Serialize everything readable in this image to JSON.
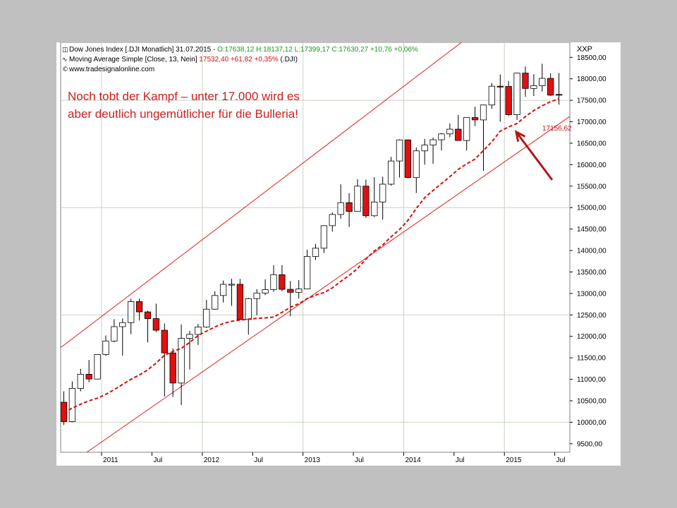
{
  "header": {
    "line1_prefix": "Dow Jones Index [.DJI  Monatlich] 31.07.2015 - ",
    "line1_ohlc": "O:17638,12 H:18137,12 L:17399,17 C:17630,27 +10,76 +0,06%",
    "line2_prefix": "Moving Average Simple [Close, 13, Nein] ",
    "line2_values": "17532,40 +61,82 +0,35%",
    "line2_suffix": " (.DJI)",
    "line3": "www.tradesignalonline.com",
    "symbol": "XXP"
  },
  "annotation": {
    "line1": "Noch tobt der Kampf – unter 17.000 wird es",
    "line2": "aber deutlich ungemütlicher für die Bulleria!"
  },
  "last_value_label": "17156,62",
  "colors": {
    "up_candle": "#ffffff",
    "down_candle": "#e01010",
    "moving_average": "#d01010",
    "channel": "#e02020",
    "arrow": "#b01818",
    "grid": "#c8d4c0"
  },
  "chart_data": {
    "type": "candlestick",
    "title": "Dow Jones Index [.DJI Monatlich]",
    "period": "monthly",
    "ylim": [
      9300,
      18850
    ],
    "y_ticks": [
      9500,
      10000,
      10500,
      11000,
      11500,
      12000,
      12500,
      13000,
      13500,
      14000,
      14500,
      15000,
      15500,
      16000,
      16500,
      17000,
      17500,
      18000,
      18500
    ],
    "y_tick_labels": [
      "9500,00",
      "10000,00",
      "10500,00",
      "11000,00",
      "11500,00",
      "12000,00",
      "12500,00",
      "13000,00",
      "13500,00",
      "14000,00",
      "14500,00",
      "15000,00",
      "15500,00",
      "16000,00",
      "16500,00",
      "17000,00",
      "17500,00",
      "18000,00",
      "18500,00"
    ],
    "x_ticks": [
      {
        "label": "2011",
        "index": 5
      },
      {
        "label": "Jul",
        "index": 11
      },
      {
        "label": "2012",
        "index": 17
      },
      {
        "label": "Jul",
        "index": 23
      },
      {
        "label": "2013",
        "index": 29
      },
      {
        "label": "Jul",
        "index": 35
      },
      {
        "label": "2014",
        "index": 41
      },
      {
        "label": "Jul",
        "index": 47
      },
      {
        "label": "2015",
        "index": 53
      },
      {
        "label": "Jul",
        "index": 59
      }
    ],
    "candles": [
      {
        "date": "2010-08",
        "o": 10466,
        "h": 10720,
        "l": 9936,
        "c": 10015
      },
      {
        "date": "2010-09",
        "o": 10015,
        "h": 10950,
        "l": 10000,
        "c": 10788
      },
      {
        "date": "2010-10",
        "o": 10788,
        "h": 11245,
        "l": 10720,
        "c": 11118
      },
      {
        "date": "2010-11",
        "o": 11118,
        "h": 11450,
        "l": 10930,
        "c": 11006
      },
      {
        "date": "2010-12",
        "o": 11006,
        "h": 11585,
        "l": 11000,
        "c": 11578
      },
      {
        "date": "2011-01",
        "o": 11578,
        "h": 12020,
        "l": 11550,
        "c": 11892
      },
      {
        "date": "2011-02",
        "o": 11892,
        "h": 12400,
        "l": 11860,
        "c": 12226
      },
      {
        "date": "2011-03",
        "o": 12226,
        "h": 12420,
        "l": 11550,
        "c": 12320
      },
      {
        "date": "2011-04",
        "o": 12320,
        "h": 12880,
        "l": 12050,
        "c": 12811
      },
      {
        "date": "2011-05",
        "o": 12811,
        "h": 12880,
        "l": 12370,
        "c": 12570
      },
      {
        "date": "2011-06",
        "o": 12570,
        "h": 12600,
        "l": 11860,
        "c": 12414
      },
      {
        "date": "2011-07",
        "o": 12414,
        "h": 12760,
        "l": 12100,
        "c": 12143
      },
      {
        "date": "2011-08",
        "o": 12143,
        "h": 12300,
        "l": 10600,
        "c": 11614
      },
      {
        "date": "2011-09",
        "o": 11614,
        "h": 11720,
        "l": 10590,
        "c": 10913
      },
      {
        "date": "2011-10",
        "o": 10913,
        "h": 12280,
        "l": 10400,
        "c": 11955
      },
      {
        "date": "2011-11",
        "o": 11955,
        "h": 12130,
        "l": 11230,
        "c": 12046
      },
      {
        "date": "2011-12",
        "o": 12046,
        "h": 12290,
        "l": 11800,
        "c": 12218
      },
      {
        "date": "2012-01",
        "o": 12218,
        "h": 12850,
        "l": 12200,
        "c": 12633
      },
      {
        "date": "2012-02",
        "o": 12633,
        "h": 13050,
        "l": 12620,
        "c": 12952
      },
      {
        "date": "2012-03",
        "o": 12952,
        "h": 13300,
        "l": 12790,
        "c": 13212
      },
      {
        "date": "2012-04",
        "o": 13212,
        "h": 13340,
        "l": 12710,
        "c": 13214
      },
      {
        "date": "2012-05",
        "o": 13214,
        "h": 13340,
        "l": 12380,
        "c": 12393
      },
      {
        "date": "2012-06",
        "o": 12393,
        "h": 12900,
        "l": 12040,
        "c": 12880
      },
      {
        "date": "2012-07",
        "o": 12880,
        "h": 13100,
        "l": 12490,
        "c": 13009
      },
      {
        "date": "2012-08",
        "o": 13009,
        "h": 13330,
        "l": 12960,
        "c": 13091
      },
      {
        "date": "2012-09",
        "o": 13091,
        "h": 13660,
        "l": 13040,
        "c": 13437
      },
      {
        "date": "2012-10",
        "o": 13437,
        "h": 13660,
        "l": 13050,
        "c": 13096
      },
      {
        "date": "2012-11",
        "o": 13096,
        "h": 13290,
        "l": 12470,
        "c": 13026
      },
      {
        "date": "2012-12",
        "o": 13026,
        "h": 13310,
        "l": 12880,
        "c": 13104
      },
      {
        "date": "2013-01",
        "o": 13104,
        "h": 14020,
        "l": 13100,
        "c": 13861
      },
      {
        "date": "2013-02",
        "o": 13861,
        "h": 14150,
        "l": 13780,
        "c": 14054
      },
      {
        "date": "2013-03",
        "o": 14054,
        "h": 14590,
        "l": 13940,
        "c": 14579
      },
      {
        "date": "2013-04",
        "o": 14579,
        "h": 14890,
        "l": 14440,
        "c": 14840
      },
      {
        "date": "2013-05",
        "o": 14840,
        "h": 15540,
        "l": 14740,
        "c": 15116
      },
      {
        "date": "2013-06",
        "o": 15116,
        "h": 15340,
        "l": 14550,
        "c": 14910
      },
      {
        "date": "2013-07",
        "o": 14910,
        "h": 15660,
        "l": 14900,
        "c": 15500
      },
      {
        "date": "2013-08",
        "o": 15500,
        "h": 15650,
        "l": 14760,
        "c": 14810
      },
      {
        "date": "2013-09",
        "o": 14810,
        "h": 15710,
        "l": 14780,
        "c": 15130
      },
      {
        "date": "2013-10",
        "o": 15130,
        "h": 15720,
        "l": 14720,
        "c": 15546
      },
      {
        "date": "2013-11",
        "o": 15546,
        "h": 16180,
        "l": 15510,
        "c": 16086
      },
      {
        "date": "2013-12",
        "o": 16086,
        "h": 16590,
        "l": 15700,
        "c": 16577
      },
      {
        "date": "2014-01",
        "o": 16577,
        "h": 16590,
        "l": 15680,
        "c": 15699
      },
      {
        "date": "2014-02",
        "o": 15699,
        "h": 16400,
        "l": 15340,
        "c": 16322
      },
      {
        "date": "2014-03",
        "o": 16322,
        "h": 16600,
        "l": 16000,
        "c": 16458
      },
      {
        "date": "2014-04",
        "o": 16458,
        "h": 16630,
        "l": 16020,
        "c": 16581
      },
      {
        "date": "2014-05",
        "o": 16581,
        "h": 16740,
        "l": 16330,
        "c": 16717
      },
      {
        "date": "2014-06",
        "o": 16717,
        "h": 16960,
        "l": 16640,
        "c": 16827
      },
      {
        "date": "2014-07",
        "o": 16827,
        "h": 17160,
        "l": 16560,
        "c": 16563
      },
      {
        "date": "2014-08",
        "o": 16563,
        "h": 17100,
        "l": 16330,
        "c": 17098
      },
      {
        "date": "2014-09",
        "o": 17098,
        "h": 17350,
        "l": 16900,
        "c": 17043
      },
      {
        "date": "2014-10",
        "o": 17043,
        "h": 17400,
        "l": 15860,
        "c": 17391
      },
      {
        "date": "2014-11",
        "o": 17391,
        "h": 17900,
        "l": 17300,
        "c": 17828
      },
      {
        "date": "2014-12",
        "o": 17828,
        "h": 18100,
        "l": 17000,
        "c": 17823
      },
      {
        "date": "2015-01",
        "o": 17823,
        "h": 17950,
        "l": 17140,
        "c": 17165
      },
      {
        "date": "2015-02",
        "o": 17165,
        "h": 18140,
        "l": 17040,
        "c": 18133
      },
      {
        "date": "2015-03",
        "o": 18133,
        "h": 18290,
        "l": 17580,
        "c": 17776
      },
      {
        "date": "2015-04",
        "o": 17776,
        "h": 18110,
        "l": 17600,
        "c": 17841
      },
      {
        "date": "2015-05",
        "o": 17841,
        "h": 18350,
        "l": 17700,
        "c": 18011
      },
      {
        "date": "2015-06",
        "o": 18011,
        "h": 18130,
        "l": 17600,
        "c": 17620
      },
      {
        "date": "2015-07",
        "o": 17638,
        "h": 18137,
        "l": 17399,
        "c": 17630
      }
    ],
    "moving_average": {
      "name": "Moving Average Simple [Close, 13, Nein]",
      "start_index": 0,
      "values": [
        10220,
        10330,
        10420,
        10500,
        10560,
        10650,
        10760,
        10880,
        11000,
        11100,
        11220,
        11380,
        11560,
        11650,
        11720,
        11860,
        12020,
        12120,
        12220,
        12300,
        12350,
        12380,
        12400,
        12420,
        12430,
        12450,
        12560,
        12680,
        12760,
        12880,
        12960,
        13020,
        13130,
        13280,
        13420,
        13580,
        13800,
        13990,
        14130,
        14320,
        14490,
        14700,
        14980,
        15230,
        15400,
        15560,
        15720,
        15890,
        16020,
        16130,
        16330,
        16530,
        16780,
        16880,
        16960,
        17120,
        17260,
        17370,
        17470,
        17532
      ]
    },
    "channel": {
      "upper": {
        "from": {
          "index": -0.5,
          "value": 11720
        },
        "to": {
          "index": 62.5,
          "value": 21100
        }
      },
      "lower": {
        "from": {
          "index": -0.5,
          "value": 8860
        },
        "to": {
          "index": 66,
          "value": 17900
        }
      }
    },
    "last_value": 17156.62
  }
}
